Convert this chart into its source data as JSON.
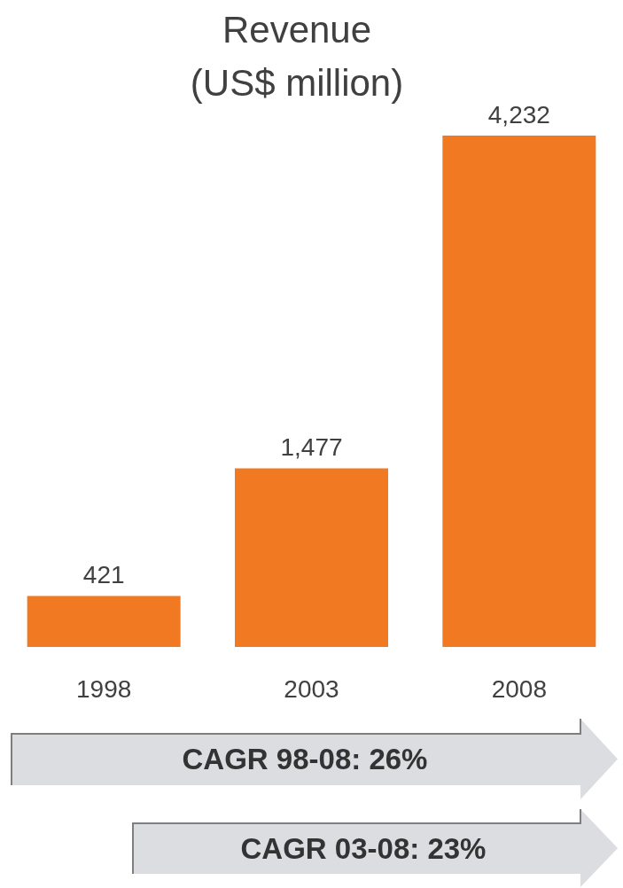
{
  "chart_data": {
    "type": "bar",
    "title": "Revenue\n(US$ million)",
    "categories": [
      "1998",
      "2003",
      "2008"
    ],
    "values": [
      421,
      1477,
      4232
    ],
    "color": "#f07921",
    "value_labels": [
      "421",
      "1,477",
      "4,232"
    ],
    "annotations": [
      "CAGR 98-08: 26%",
      "CAGR 03-08: 23%"
    ]
  }
}
